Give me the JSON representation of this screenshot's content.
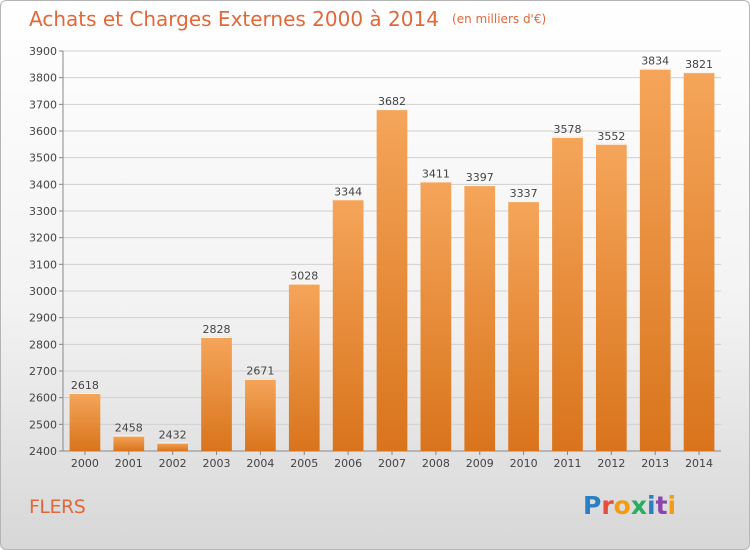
{
  "header": {
    "title": "Achats et Charges Externes 2000 à 2014",
    "unit": "(en milliers d'€)"
  },
  "footer": {
    "place": "FLERS",
    "brand": "Proxiti",
    "brand_letters": [
      {
        "ch": "P",
        "color": "#2a7fc5"
      },
      {
        "ch": "r",
        "color": "#e74c3c"
      },
      {
        "ch": "o",
        "color": "#f39c12"
      },
      {
        "ch": "x",
        "color": "#27ae60"
      },
      {
        "ch": "i",
        "color": "#2a7fc5"
      },
      {
        "ch": "t",
        "color": "#8e44ad"
      },
      {
        "ch": "i",
        "color": "#f39c12"
      }
    ]
  },
  "colors": {
    "accent": "#e2683a",
    "bar_light": "#f5a55a",
    "bar_dark": "#d9741c",
    "grid": "#d0d0d0",
    "text": "#444444"
  },
  "chart_data": {
    "type": "bar",
    "title": "Achats et Charges Externes 2000 à 2014",
    "subtitle": "(en milliers d'€)",
    "categories": [
      "2000",
      "2001",
      "2002",
      "2003",
      "2004",
      "2005",
      "2006",
      "2007",
      "2008",
      "2009",
      "2010",
      "2011",
      "2012",
      "2013",
      "2014"
    ],
    "values": [
      2618,
      2458,
      2432,
      2828,
      2671,
      3028,
      3344,
      3682,
      3411,
      3397,
      3337,
      3578,
      3552,
      3834,
      3821
    ],
    "xlabel": "",
    "ylabel": "",
    "ylim": [
      2400,
      3900
    ],
    "ytick_step": 100,
    "grid": true,
    "legend": "none"
  }
}
